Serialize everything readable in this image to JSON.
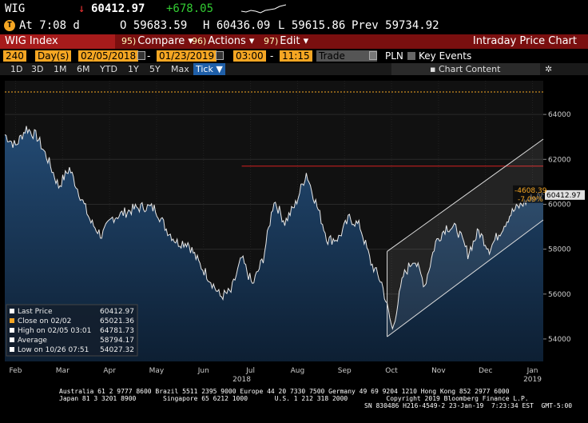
{
  "ticker": {
    "symbol": "WIG",
    "arrow": "↓",
    "last": "60412.97",
    "change": "+678.05",
    "at_label": "At 7:08 d",
    "open_label": "O 59683.59",
    "high_label": "H 60436.09",
    "low_label": "L 59615.86",
    "prev_label": "Prev 59734.92",
    "badge": "T"
  },
  "titlebar": {
    "index_title": "WIG Index",
    "compare_num": "95)",
    "compare_label": "Compare",
    "actions_num": "96)",
    "actions_label": "Actions",
    "edit_num": "97)",
    "edit_label": "Edit",
    "chart_title": "Intraday Price Chart"
  },
  "settings": {
    "bars": "240",
    "unit": "Day(s)",
    "start_date": "02/05/2018",
    "end_date": "01/23/2019",
    "start_time": "03:00",
    "end_time": "11:15",
    "field": "Trade",
    "currency": "PLN",
    "key_events": "Key Events"
  },
  "range_tabs": [
    {
      "label": "1D"
    },
    {
      "label": "3D"
    },
    {
      "label": "1M"
    },
    {
      "label": "6M"
    },
    {
      "label": "YTD"
    },
    {
      "label": "1Y"
    },
    {
      "label": "5Y"
    },
    {
      "label": "Max"
    },
    {
      "label": "Tick ▼"
    }
  ],
  "chart_content_label": "Chart Content",
  "gear_icon": "gear-icon",
  "colors": {
    "accent_orange": "#f5a623",
    "title_red": "#a71b1b",
    "area_top": "#234a73",
    "area_bottom": "#0d1f33",
    "price_line": "#e8e8e8",
    "resistance": "#d42020",
    "last_tag": "#e0e0e0",
    "delta_tag": "#f5a623"
  },
  "chart_data": {
    "type": "line",
    "title": "",
    "xlabel": "",
    "ylabel": "",
    "ylim": [
      53000,
      65500
    ],
    "y_ticks": [
      54000,
      56000,
      58000,
      60000,
      62000,
      64000
    ],
    "y_tick_labels": [
      "54000",
      "56000",
      "58000",
      "60000",
      "62000",
      "64000"
    ],
    "x_months": [
      "Feb",
      "Mar",
      "Apr",
      "May",
      "Jun",
      "Jul",
      "Aug",
      "Sep",
      "Oct",
      "Nov",
      "Dec",
      "Jan"
    ],
    "x_years": [
      "2018",
      "2019"
    ],
    "series": [
      {
        "values": [
          [
            0.0,
            63100
          ],
          [
            0.02,
            62600
          ],
          [
            0.04,
            63400
          ],
          [
            0.06,
            63000
          ],
          [
            0.08,
            62000
          ],
          [
            0.1,
            60800
          ],
          [
            0.12,
            61600
          ],
          [
            0.14,
            60400
          ],
          [
            0.16,
            59200
          ],
          [
            0.18,
            58600
          ],
          [
            0.2,
            59400
          ],
          [
            0.22,
            59600
          ],
          [
            0.24,
            59800
          ],
          [
            0.26,
            59900
          ],
          [
            0.28,
            59800
          ],
          [
            0.3,
            58900
          ],
          [
            0.32,
            58300
          ],
          [
            0.34,
            58300
          ],
          [
            0.36,
            57400
          ],
          [
            0.38,
            56700
          ],
          [
            0.4,
            55900
          ],
          [
            0.42,
            56100
          ],
          [
            0.44,
            57600
          ],
          [
            0.46,
            56400
          ],
          [
            0.48,
            57600
          ],
          [
            0.5,
            60200
          ],
          [
            0.52,
            59200
          ],
          [
            0.54,
            60000
          ],
          [
            0.56,
            61400
          ],
          [
            0.58,
            59900
          ],
          [
            0.6,
            58400
          ],
          [
            0.62,
            58500
          ],
          [
            0.64,
            59400
          ],
          [
            0.66,
            59000
          ],
          [
            0.68,
            57400
          ],
          [
            0.7,
            56500
          ],
          [
            0.72,
            54400
          ],
          [
            0.74,
            56800
          ],
          [
            0.76,
            57600
          ],
          [
            0.78,
            56400
          ],
          [
            0.8,
            58300
          ],
          [
            0.82,
            59000
          ],
          [
            0.84,
            58900
          ],
          [
            0.86,
            57800
          ],
          [
            0.88,
            58800
          ],
          [
            0.9,
            58000
          ],
          [
            0.92,
            58800
          ],
          [
            0.94,
            59600
          ],
          [
            0.96,
            60000
          ],
          [
            0.98,
            60300
          ],
          [
            1.0,
            60413
          ]
        ]
      }
    ],
    "resistance_level": 61700,
    "channel": {
      "lower": [
        [
          0.71,
          54100
        ],
        [
          1.0,
          59300
        ]
      ],
      "upper": [
        [
          0.71,
          57900
        ],
        [
          1.0,
          62900
        ]
      ]
    },
    "reference_line": 65000,
    "last_price_tag": "60412.97",
    "delta_abs": "-4608.39",
    "delta_pct": "-7.09%",
    "legend": [
      {
        "label": "Last Price",
        "value": "60412.97",
        "color": "#ffffff"
      },
      {
        "label": "Close on 02/02",
        "value": "65021.36",
        "color": "#f5a623"
      },
      {
        "label": "High on 02/05 03:01",
        "value": "64781.73",
        "color": "#ffffff"
      },
      {
        "label": "Average",
        "value": "58794.17",
        "color": "#ffffff"
      },
      {
        "label": "Low on 10/26 07:51",
        "value": "54027.32",
        "color": "#ffffff"
      }
    ]
  },
  "footer": {
    "line1": "Australia 61 2 9777 8600 Brazil 5511 2395 9000 Europe 44 20 7330 7500 Germany 49 69 9204 1210 Hong Kong 852 2977 6000",
    "line2": "Japan 81 3 3201 8900       Singapore 65 6212 1000       U.S. 1 212 318 2000          Copyright 2019 Bloomberg Finance L.P.",
    "line3": "SN 830486 H216-4549-2 23-Jan-19  7:23:34 EST  GMT-5:00"
  }
}
